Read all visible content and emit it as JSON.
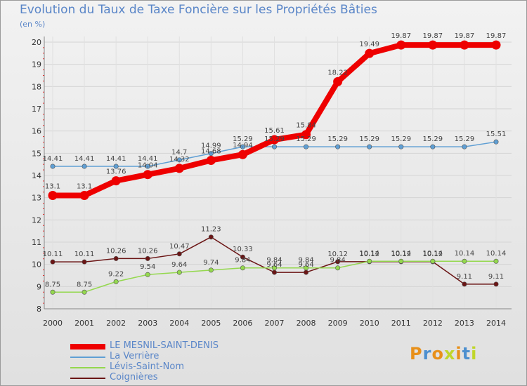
{
  "chart_data": {
    "type": "line",
    "title": "Evolution du Taux de Taxe Foncière sur les Propriétés Bâties",
    "ylabel": "(en %)",
    "xlabel": "",
    "ylim": [
      8,
      20
    ],
    "yticks": [
      8,
      9,
      10,
      11,
      12,
      13,
      14,
      15,
      16,
      17,
      18,
      19,
      20
    ],
    "categories": [
      "2000",
      "2001",
      "2002",
      "2003",
      "2004",
      "2005",
      "2006",
      "2007",
      "2008",
      "2009",
      "2010",
      "2011",
      "2012",
      "2013",
      "2014"
    ],
    "series": [
      {
        "name": "LE MESNIL-SAINT-DENIS",
        "color": "#ee0000",
        "values": [
          13.1,
          13.1,
          13.76,
          14.04,
          14.32,
          14.68,
          14.94,
          15.61,
          15.84,
          18.22,
          19.49,
          19.87,
          19.87,
          19.87,
          19.87
        ],
        "labels": [
          "13.1",
          "13.1",
          "13.76",
          "14.04",
          "14.32",
          "14.68",
          "14.94",
          "15.61",
          "15.84",
          "18.22",
          "19.49",
          "19.87",
          "19.87",
          "19.87",
          "19.87"
        ]
      },
      {
        "name": "La Verrière",
        "color": "#5f9fd4",
        "values": [
          14.41,
          14.41,
          14.41,
          14.41,
          14.7,
          14.99,
          15.29,
          15.29,
          15.29,
          15.29,
          15.29,
          15.29,
          15.29,
          15.29,
          15.51
        ],
        "labels": [
          "14.41",
          "14.41",
          "14.41",
          "14.41",
          "14.7",
          "14.99",
          "15.29",
          "15.29",
          "15.29",
          "15.29",
          "15.29",
          "15.29",
          "15.29",
          "15.29",
          "15.51"
        ]
      },
      {
        "name": "Lévis-Saint-Nom",
        "color": "#94d84e",
        "values": [
          8.75,
          8.75,
          9.22,
          9.54,
          9.64,
          9.74,
          9.84,
          9.84,
          9.84,
          9.84,
          10.14,
          10.14,
          10.14,
          10.14,
          10.14
        ],
        "labels": [
          "8.75",
          "8.75",
          "9.22",
          "9.54",
          "9.64",
          "9.74",
          "9.84",
          "9.84",
          "9.84",
          "9.84",
          "10.14",
          "10.14",
          "10.14",
          "10.14",
          "10.14"
        ]
      },
      {
        "name": "Coignières",
        "color": "#6b1515",
        "values": [
          10.11,
          10.11,
          10.26,
          10.26,
          10.47,
          11.23,
          10.33,
          9.64,
          9.64,
          10.12,
          10.12,
          10.12,
          10.12,
          9.11,
          9.11
        ],
        "labels": [
          "10.11",
          "10.11",
          "10.26",
          "10.26",
          "10.47",
          "11.23",
          "10.33",
          "9.64",
          "9.64",
          "10.12",
          "10.12",
          "10.12",
          "10.12",
          "9.11",
          "9.11"
        ]
      }
    ]
  },
  "logo_text": "Proxiti",
  "logo_colors": [
    "#e8901a",
    "#4c8fcf",
    "#e8901a",
    "#c0d62a",
    "#e8901a",
    "#4c8fcf",
    "#c0d62a"
  ]
}
